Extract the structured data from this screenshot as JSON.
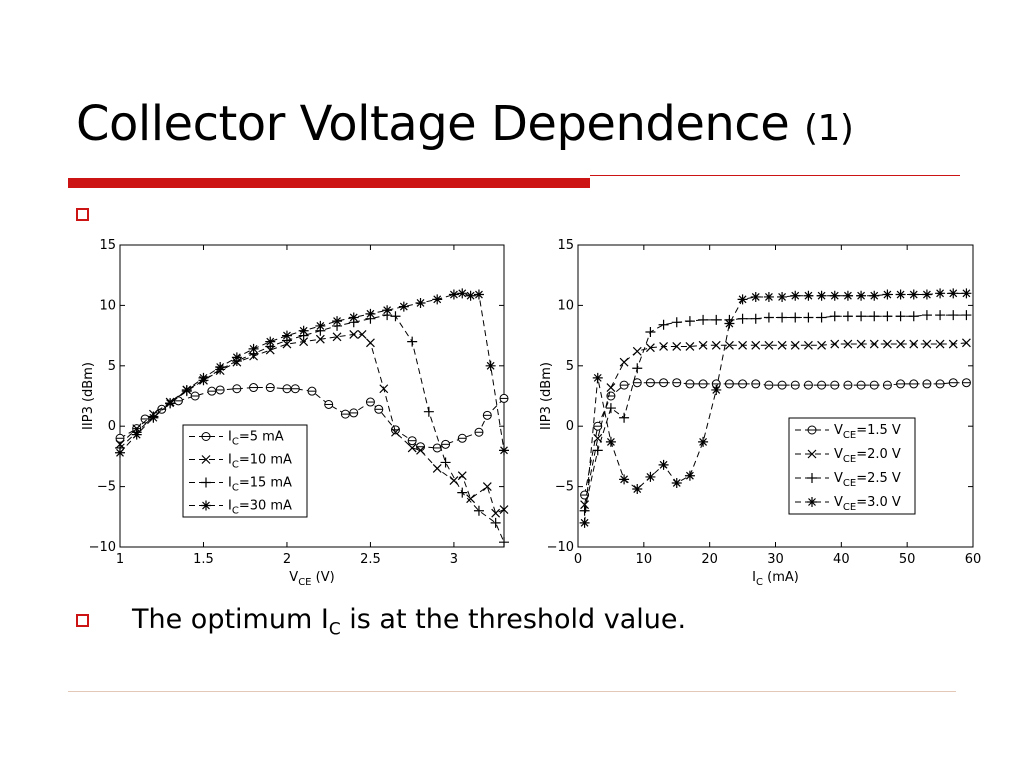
{
  "slide": {
    "title": "Collector Voltage Dependence",
    "title_suffix": "(1)",
    "bullet_text": {
      "before": "The optimum I",
      "sub": "C",
      "after": " is at the threshold value."
    }
  },
  "colors": {
    "accent": "#cc1414",
    "footer_rule": "#e3c8b8"
  },
  "chart_data": [
    {
      "type": "line",
      "xlabel": {
        "main": "V",
        "sub": "CE",
        "unit": " (V)"
      },
      "ylabel": "IIP3 (dBm)",
      "xlim": [
        1,
        3.3
      ],
      "ylim": [
        -10,
        15
      ],
      "xticks": [
        "1",
        "1.5",
        "2",
        "2.5",
        "3"
      ],
      "yticks": [
        "15",
        "10",
        "5",
        "0",
        "−5",
        "−10"
      ],
      "grid": false,
      "legend": "center-left",
      "series": [
        {
          "label": {
            "main": "I",
            "sub": "C",
            "rest": "=5 mA"
          },
          "marker": "circle",
          "dash": "6,4",
          "x": [
            1.0,
            1.1,
            1.15,
            1.25,
            1.35,
            1.45,
            1.55,
            1.6,
            1.7,
            1.8,
            1.9,
            2.0,
            2.05,
            2.15,
            2.25,
            2.35,
            2.4,
            2.5,
            2.55,
            2.65,
            2.75,
            2.8,
            2.9,
            2.95,
            3.05,
            3.15,
            3.2,
            3.3
          ],
          "y": [
            -1,
            -0.2,
            0.6,
            1.4,
            2.1,
            2.5,
            2.9,
            3.0,
            3.1,
            3.2,
            3.2,
            3.1,
            3.1,
            2.9,
            1.8,
            1.0,
            1.1,
            2.0,
            1.4,
            -0.3,
            -1.2,
            -1.7,
            -1.8,
            -1.5,
            -1.0,
            -0.5,
            0.9,
            2.3
          ]
        },
        {
          "label": {
            "main": "I",
            "sub": "C",
            "rest": "=10 mA"
          },
          "marker": "x",
          "dash": "6,4",
          "x": [
            1.0,
            1.1,
            1.2,
            1.3,
            1.4,
            1.5,
            1.6,
            1.7,
            1.8,
            1.9,
            2.0,
            2.1,
            2.2,
            2.3,
            2.4,
            2.45,
            2.5,
            2.58,
            2.65,
            2.75,
            2.8,
            2.9,
            3.0,
            3.05,
            3.1,
            3.2,
            3.25,
            3.3
          ],
          "y": [
            -1.5,
            -0.2,
            1.0,
            2.0,
            3.0,
            3.8,
            4.6,
            5.3,
            5.8,
            6.3,
            6.8,
            7.0,
            7.2,
            7.4,
            7.6,
            7.6,
            6.9,
            3.1,
            -0.5,
            -1.8,
            -2.0,
            -3.5,
            -4.5,
            -4.1,
            -6.0,
            -5.0,
            -7.2,
            -6.9
          ]
        },
        {
          "label": {
            "main": "I",
            "sub": "C",
            "rest": "=15 mA"
          },
          "marker": "plus",
          "dash": "6,4",
          "x": [
            1.0,
            1.1,
            1.2,
            1.3,
            1.4,
            1.5,
            1.6,
            1.7,
            1.8,
            1.9,
            2.0,
            2.1,
            2.2,
            2.3,
            2.4,
            2.5,
            2.6,
            2.65,
            2.75,
            2.85,
            2.95,
            3.05,
            3.15,
            3.25,
            3.3
          ],
          "y": [
            -1.8,
            -0.5,
            0.8,
            1.9,
            2.9,
            3.8,
            4.7,
            5.4,
            6.0,
            6.6,
            7.1,
            7.5,
            7.9,
            8.3,
            8.6,
            8.9,
            9.2,
            9.1,
            7.0,
            1.2,
            -3.0,
            -5.5,
            -7.0,
            -8.0,
            -9.6
          ]
        },
        {
          "label": {
            "main": "I",
            "sub": "C",
            "rest": "=30 mA"
          },
          "marker": "star",
          "dash": "6,4",
          "x": [
            1.0,
            1.1,
            1.2,
            1.3,
            1.4,
            1.5,
            1.6,
            1.7,
            1.8,
            1.9,
            2.0,
            2.1,
            2.2,
            2.3,
            2.4,
            2.5,
            2.6,
            2.7,
            2.8,
            2.9,
            3.0,
            3.05,
            3.1,
            3.15,
            3.22,
            3.3
          ],
          "y": [
            -2.2,
            -0.7,
            0.7,
            1.9,
            3.0,
            4.0,
            4.9,
            5.7,
            6.4,
            7.0,
            7.5,
            7.9,
            8.3,
            8.7,
            9.0,
            9.3,
            9.6,
            9.9,
            10.2,
            10.5,
            10.9,
            11.0,
            10.8,
            10.9,
            5.0,
            -2.0
          ]
        }
      ]
    },
    {
      "type": "line",
      "xlabel": {
        "main": "I",
        "sub": "C",
        "unit": " (mA)"
      },
      "ylabel": "IIP3 (dBm)",
      "xlim": [
        0,
        60
      ],
      "ylim": [
        -10,
        15
      ],
      "xticks": [
        "0",
        "10",
        "20",
        "30",
        "40",
        "50",
        "60"
      ],
      "yticks": [
        "15",
        "10",
        "5",
        "0",
        "−5",
        "−10"
      ],
      "grid": false,
      "legend": "lower-right",
      "series": [
        {
          "label": {
            "main": "V",
            "sub": "CE",
            "rest": "=1.5 V"
          },
          "marker": "circle",
          "dash": "6,4",
          "x": [
            1,
            3,
            5,
            7,
            9,
            11,
            13,
            15,
            17,
            19,
            21,
            23,
            25,
            27,
            29,
            31,
            33,
            35,
            37,
            39,
            41,
            43,
            45,
            47,
            49,
            51,
            53,
            55,
            57,
            59
          ],
          "y": [
            -5.7,
            0.0,
            2.5,
            3.4,
            3.6,
            3.6,
            3.6,
            3.6,
            3.5,
            3.5,
            3.5,
            3.5,
            3.5,
            3.5,
            3.4,
            3.4,
            3.4,
            3.4,
            3.4,
            3.4,
            3.4,
            3.4,
            3.4,
            3.4,
            3.5,
            3.5,
            3.5,
            3.5,
            3.6,
            3.6
          ]
        },
        {
          "label": {
            "main": "V",
            "sub": "CE",
            "rest": "=2.0 V"
          },
          "marker": "x",
          "dash": "6,4",
          "x": [
            1,
            3,
            5,
            7,
            9,
            11,
            13,
            15,
            17,
            19,
            21,
            23,
            25,
            27,
            29,
            31,
            33,
            35,
            37,
            39,
            41,
            43,
            45,
            47,
            49,
            51,
            53,
            55,
            57,
            59
          ],
          "y": [
            -6.5,
            -1.0,
            3.2,
            5.3,
            6.2,
            6.5,
            6.6,
            6.6,
            6.6,
            6.7,
            6.7,
            6.7,
            6.7,
            6.7,
            6.7,
            6.7,
            6.7,
            6.7,
            6.7,
            6.8,
            6.8,
            6.8,
            6.8,
            6.8,
            6.8,
            6.8,
            6.8,
            6.8,
            6.8,
            6.9
          ]
        },
        {
          "label": {
            "main": "V",
            "sub": "CE",
            "rest": "=2.5 V"
          },
          "marker": "plus",
          "dash": "6,4",
          "x": [
            1,
            3,
            5,
            7,
            9,
            11,
            13,
            15,
            17,
            19,
            21,
            23,
            25,
            27,
            29,
            31,
            33,
            35,
            37,
            39,
            41,
            43,
            45,
            47,
            49,
            51,
            53,
            55,
            57,
            59
          ],
          "y": [
            -7.0,
            -2.0,
            1.5,
            0.7,
            4.8,
            7.8,
            8.4,
            8.6,
            8.7,
            8.8,
            8.8,
            8.8,
            8.9,
            8.9,
            9.0,
            9.0,
            9.0,
            9.0,
            9.0,
            9.1,
            9.1,
            9.1,
            9.1,
            9.1,
            9.1,
            9.1,
            9.2,
            9.2,
            9.2,
            9.2
          ]
        },
        {
          "label": {
            "main": "V",
            "sub": "CE",
            "rest": "=3.0 V"
          },
          "marker": "star",
          "dash": "6,4",
          "x": [
            1,
            3,
            5,
            7,
            9,
            11,
            13,
            15,
            17,
            19,
            21,
            23,
            25,
            27,
            29,
            31,
            33,
            35,
            37,
            39,
            41,
            43,
            45,
            47,
            49,
            51,
            53,
            55,
            57,
            59
          ],
          "y": [
            -8.0,
            4.0,
            -1.3,
            -4.4,
            -5.2,
            -4.2,
            -3.2,
            -4.7,
            -4.1,
            -1.3,
            3.0,
            8.5,
            10.5,
            10.7,
            10.7,
            10.7,
            10.8,
            10.8,
            10.8,
            10.8,
            10.8,
            10.8,
            10.8,
            10.9,
            10.9,
            10.9,
            10.9,
            11.0,
            11.0,
            11.0
          ]
        }
      ]
    }
  ]
}
